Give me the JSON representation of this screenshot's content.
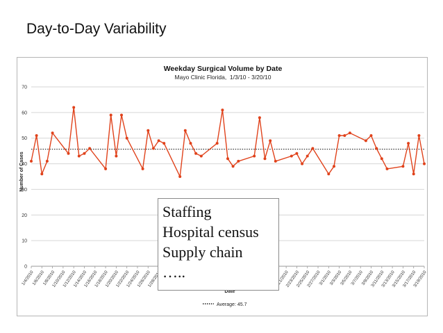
{
  "slide": {
    "title": "Day-to-Day Variability"
  },
  "overlay": {
    "lines": [
      "Staffing",
      "Hospital census",
      "Supply chain",
      "….."
    ]
  },
  "chart_data": {
    "type": "line",
    "title": "Weekday Surgical Volume by Date",
    "subtitle": "Mayo Clinic Florida,  1/3/10 - 3/20/10",
    "xlabel": "Date",
    "ylabel": "Number of Cases",
    "ylim": [
      0,
      70
    ],
    "yticks": [
      0,
      10,
      20,
      30,
      40,
      50,
      60,
      70
    ],
    "xlim": [
      "2010-01-04",
      "2010-03-19"
    ],
    "xtick_labels": [
      "1/4/2010",
      "1/6/2010",
      "1/8/2010",
      "1/10/2010",
      "1/12/2010",
      "1/14/2010",
      "1/16/2010",
      "1/18/2010",
      "1/20/2010",
      "1/22/2010",
      "1/24/2010",
      "1/26/2010",
      "1/28/2010",
      "1/30/2010",
      "2/1/2010",
      "2/3/2010",
      "2/5/2010",
      "2/7/2010",
      "2/9/2010",
      "2/11/2010",
      "2/13/2010",
      "2/15/2010",
      "2/17/2010",
      "2/19/2010",
      "2/21/2010",
      "2/23/2010",
      "2/25/2010",
      "2/27/2010",
      "3/1/2010",
      "3/3/2010",
      "3/5/2010",
      "3/7/2010",
      "3/9/2010",
      "3/11/2010",
      "3/13/2010",
      "3/15/2010",
      "3/17/2010",
      "3/19/2010"
    ],
    "grid": true,
    "legend": {
      "position": "bottom",
      "label": "Average: 45.7"
    },
    "average": 45.7,
    "colors": {
      "series": "#e0421b",
      "average": "#222222",
      "grid": "#d6d6d6"
    },
    "series": [
      {
        "x": [
          "2010-01-04",
          "2010-01-05",
          "2010-01-06",
          "2010-01-07",
          "2010-01-08",
          "2010-01-11",
          "2010-01-12",
          "2010-01-13",
          "2010-01-14",
          "2010-01-15",
          "2010-01-18",
          "2010-01-19",
          "2010-01-20",
          "2010-01-21",
          "2010-01-22",
          "2010-01-25",
          "2010-01-26",
          "2010-01-27",
          "2010-01-28",
          "2010-01-29",
          "2010-02-01",
          "2010-02-02",
          "2010-02-03",
          "2010-02-04",
          "2010-02-05",
          "2010-02-08",
          "2010-02-09",
          "2010-02-10",
          "2010-02-11",
          "2010-02-12",
          "2010-02-15",
          "2010-02-16",
          "2010-02-17",
          "2010-02-18",
          "2010-02-19",
          "2010-02-22",
          "2010-02-23",
          "2010-02-24",
          "2010-02-25",
          "2010-02-26",
          "2010-03-01",
          "2010-03-02",
          "2010-03-03",
          "2010-03-04",
          "2010-03-05",
          "2010-03-08",
          "2010-03-09",
          "2010-03-10",
          "2010-03-11",
          "2010-03-12",
          "2010-03-15",
          "2010-03-16",
          "2010-03-17",
          "2010-03-18",
          "2010-03-19"
        ],
        "values": [
          41,
          51,
          36,
          41,
          52,
          44,
          62,
          43,
          44,
          46,
          38,
          59,
          43,
          59,
          50,
          38,
          53,
          46,
          49,
          48,
          35,
          53,
          48,
          44,
          43,
          48,
          61,
          42,
          39,
          41,
          43,
          58,
          42,
          49,
          41,
          43,
          44,
          40,
          43,
          46,
          36,
          39,
          51,
          51,
          52,
          49,
          51,
          46,
          42,
          38,
          39,
          48,
          36,
          51,
          40
        ]
      }
    ]
  }
}
